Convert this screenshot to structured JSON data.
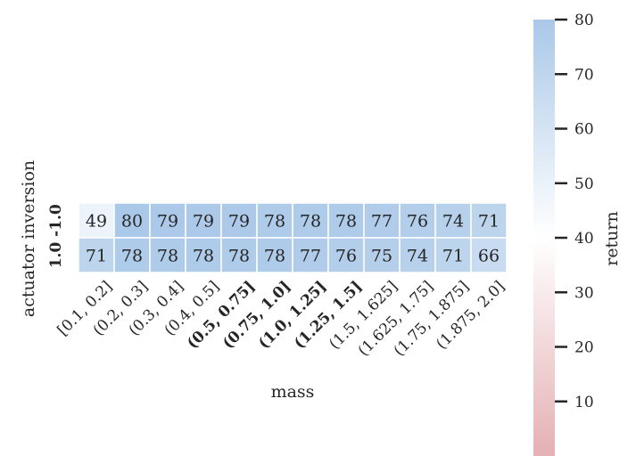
{
  "chart_data": {
    "type": "heatmap",
    "xlabel": "mass",
    "ylabel": "actuator inversion",
    "x_categories": [
      "[0.1, 0.2]",
      "(0.2, 0.3]",
      "(0.3, 0.4]",
      "(0.4, 0.5]",
      "(0.5, 0.75]",
      "(0.75, 1.0]",
      "(1.0, 1.25]",
      "(1.25, 1.5]",
      "(1.5, 1.625]",
      "(1.625, 1.75]",
      "(1.75, 1.875]",
      "(1.875, 2.0]"
    ],
    "x_bold": [
      false,
      false,
      false,
      false,
      true,
      true,
      true,
      true,
      false,
      false,
      false,
      false
    ],
    "y_categories": [
      "-1.0",
      "1.0"
    ],
    "y_bold": [
      true,
      true
    ],
    "values": [
      [
        49,
        80,
        79,
        79,
        79,
        78,
        78,
        78,
        77,
        76,
        74,
        71
      ],
      [
        71,
        78,
        78,
        78,
        78,
        78,
        77,
        76,
        75,
        74,
        71,
        66
      ]
    ],
    "colorbar": {
      "label": "return",
      "vmin": 0,
      "vmax": 80,
      "center": 40,
      "ticks": [
        10,
        20,
        30,
        40,
        50,
        60,
        70,
        80
      ],
      "colormap": {
        "low": "#e4b0b4",
        "center": "#ffffff",
        "high": "#aac8e8"
      }
    },
    "cell_border_color": "#ffffff",
    "grid": false
  }
}
